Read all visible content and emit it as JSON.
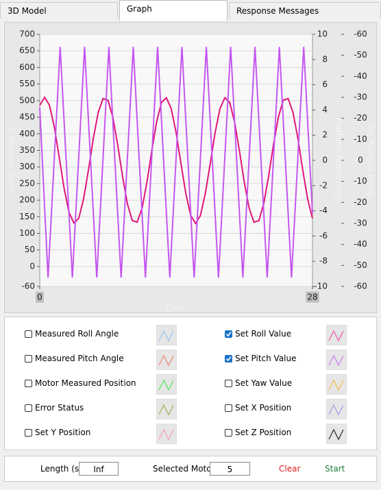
{
  "tabs": {
    "items": [
      "3D Model",
      "Graph",
      "Response Messages"
    ],
    "active": 1
  },
  "chart_data": {
    "type": "line",
    "xlabel": "Time",
    "ylabel": "Z Position (mm)",
    "y2label": "Platform Angle (deg)",
    "y3label": "X-Y Position (mm)",
    "xlim": [
      0,
      28
    ],
    "xticks": [
      0,
      28
    ],
    "ylim": [
      -60,
      700
    ],
    "yticks": [
      -60,
      0,
      50,
      100,
      150,
      200,
      250,
      300,
      350,
      400,
      450,
      500,
      550,
      600,
      650,
      700
    ],
    "y2lim": [
      -10,
      10
    ],
    "y2ticks": [
      -10,
      -8,
      -6,
      -4,
      -2,
      0,
      2,
      4,
      6,
      8,
      10
    ],
    "y3lim": [
      -60,
      60
    ],
    "y3ticks": [
      {
        "value": 60,
        "label": "-60"
      },
      {
        "value": 50,
        "label": "-50"
      },
      {
        "value": 40,
        "label": "-40"
      },
      {
        "value": 30,
        "label": "-30"
      },
      {
        "value": 20,
        "label": "-20"
      },
      {
        "value": 10,
        "label": "-10"
      },
      0,
      -10,
      -20,
      -30,
      -40,
      -50,
      -60
    ],
    "grid": true,
    "series": [
      {
        "color": "#e0147a",
        "axis": "y2",
        "x": [
          0,
          0.5,
          1,
          1.5,
          2,
          2.5,
          3,
          3.5,
          4,
          4.5,
          5,
          5.5,
          6,
          6.5,
          7,
          7.5,
          8,
          8.5,
          9,
          9.5,
          10,
          10.5,
          11,
          11.5,
          12,
          12.5,
          13,
          13.5,
          14,
          14.5,
          15,
          15.5,
          16,
          16.5,
          17,
          17.5,
          18,
          18.5,
          19,
          19.5,
          20,
          20.5,
          21,
          21.5,
          22,
          22.5,
          23,
          23.5,
          24,
          24.5,
          25,
          25.5,
          26,
          26.5,
          27,
          27.5,
          28
        ],
        "values": [
          4.37,
          5,
          4.37,
          2.64,
          0.25,
          -2.2,
          -4.1,
          -4.97,
          -4.6,
          -3.06,
          -0.76,
          1.74,
          3.8,
          4.9,
          4.77,
          3.44,
          1.25,
          -1.25,
          -3.44,
          -4.77,
          -4.9,
          -3.8,
          -1.74,
          0.76,
          3.06,
          4.6,
          4.97,
          4.1,
          2.2,
          -0.25,
          -2.64,
          -4.37,
          -5,
          -4.37,
          -2.64,
          -0.25,
          2.2,
          4.1,
          4.97,
          4.6,
          3.06,
          0.76,
          -1.74,
          -3.8,
          -4.9,
          -4.77,
          -3.44,
          -1.25,
          1.25,
          3.44,
          4.77,
          4.9,
          3.8,
          1.74,
          -0.76,
          -3.06,
          -4.6
        ]
      },
      {
        "color": "#c455f0",
        "axis": "y2",
        "x": [
          0,
          0.85,
          2.1,
          3.35,
          4.6,
          5.85,
          7.1,
          8.35,
          9.6,
          10.85,
          12.1,
          13.35,
          14.6,
          15.85,
          17.1,
          18.35,
          19.6,
          20.85,
          22.1,
          23.35,
          24.6,
          25.85,
          27.1,
          28
        ],
        "values": [
          4.2,
          -9.3,
          9,
          -9.3,
          9,
          -9.3,
          9,
          -9.3,
          9,
          -9.3,
          9,
          -9.3,
          9,
          -9.3,
          9,
          -9.3,
          9,
          -9.3,
          9,
          -9.3,
          9,
          -9.3,
          9,
          -4.2
        ]
      }
    ]
  },
  "checkboxes": [
    {
      "label": "Measured Roll Angle",
      "checked": false,
      "color": "#9ac4f0"
    },
    {
      "label": "Measured Pitch Angle",
      "checked": false,
      "color": "#f08a7a"
    },
    {
      "label": "Motor Measured Position",
      "checked": false,
      "color": "#5ee85e"
    },
    {
      "label": "Error Status",
      "checked": false,
      "color": "#a8b060"
    },
    {
      "label": "Set Y Position",
      "checked": false,
      "color": "#f4a0c0"
    },
    {
      "label": "Set Roll Value",
      "checked": true,
      "color": "#e860a8"
    },
    {
      "label": "Set Pitch Value",
      "checked": true,
      "color": "#d080f0"
    },
    {
      "label": "Set Yaw Value",
      "checked": false,
      "color": "#f0c050"
    },
    {
      "label": "Set X Position",
      "checked": false,
      "color": "#a8a0e0"
    },
    {
      "label": "Set Z Position",
      "checked": false,
      "color": "#333333"
    }
  ],
  "footer": {
    "length_label": "Length (s)",
    "length_value": "Inf",
    "motor_label": "Selected Motor",
    "motor_value": "5",
    "clear": "Clear",
    "start": "Start"
  }
}
